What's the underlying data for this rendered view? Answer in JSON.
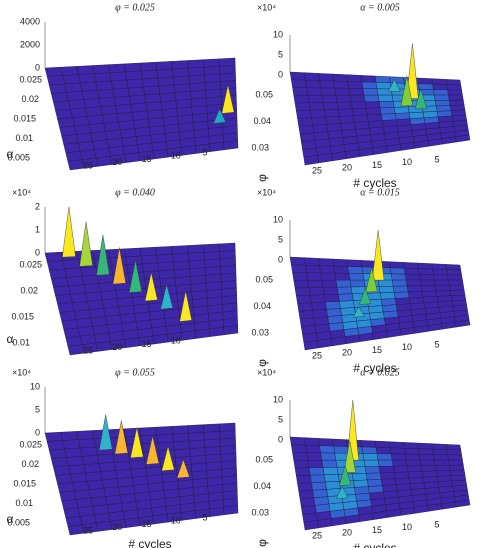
{
  "panels": [
    {
      "title": "φ = 0.025",
      "z_exponent": null,
      "z_ticks": [
        "4000",
        "2000",
        "0"
      ],
      "side_ticks": [
        "0.025",
        "0.02",
        "0.015",
        "0.01",
        "0.005"
      ],
      "side_label": "α",
      "cycle_ticks": [
        "25",
        "20",
        "15",
        "10",
        "5"
      ],
      "cycle_label": null
    },
    {
      "title": "α = 0.005",
      "z_exponent": "×10⁴",
      "z_ticks": [
        "10",
        "5",
        "0"
      ],
      "side_ticks": [
        "0.05",
        "0.04",
        "0.03"
      ],
      "side_label": "φ",
      "cycle_ticks": [
        "25",
        "20",
        "15",
        "10",
        "5"
      ],
      "cycle_label": "# cycles"
    },
    {
      "title": "φ = 0.040",
      "z_exponent": "×10⁴",
      "z_ticks": [
        "2",
        "1",
        "0"
      ],
      "side_ticks": [
        "0.025",
        "0.02",
        "0.015",
        "0.01"
      ],
      "side_label": "α",
      "cycle_ticks": [
        "25",
        "20",
        "15",
        "10"
      ],
      "cycle_label": null
    },
    {
      "title": "α = 0.015",
      "z_exponent": "×10⁴",
      "z_ticks": [
        "10",
        "5",
        "0"
      ],
      "side_ticks": [
        "0.05",
        "0.04",
        "0.03"
      ],
      "side_label": "φ",
      "cycle_ticks": [
        "25",
        "20",
        "15",
        "10",
        "5"
      ],
      "cycle_label": "# cycles"
    },
    {
      "title": "φ = 0.055",
      "z_exponent": "×10⁴",
      "z_ticks": [
        "10",
        "5",
        "0"
      ],
      "side_ticks": [
        "0.025",
        "0.02",
        "0.015",
        "0.01",
        "0.005"
      ],
      "side_label": "α",
      "cycle_ticks": [
        "25",
        "20",
        "15",
        "10",
        "5"
      ],
      "cycle_label": "# cycles"
    },
    {
      "title": "α = 0.025",
      "z_exponent": "×10⁴",
      "z_ticks": [
        "10",
        "5",
        "0"
      ],
      "side_ticks": [
        "0.05",
        "0.04",
        "0.03"
      ],
      "side_label": "φ",
      "cycle_ticks": [
        "25",
        "20",
        "15",
        "10",
        "5"
      ],
      "cycle_label": "# cycles"
    }
  ]
}
